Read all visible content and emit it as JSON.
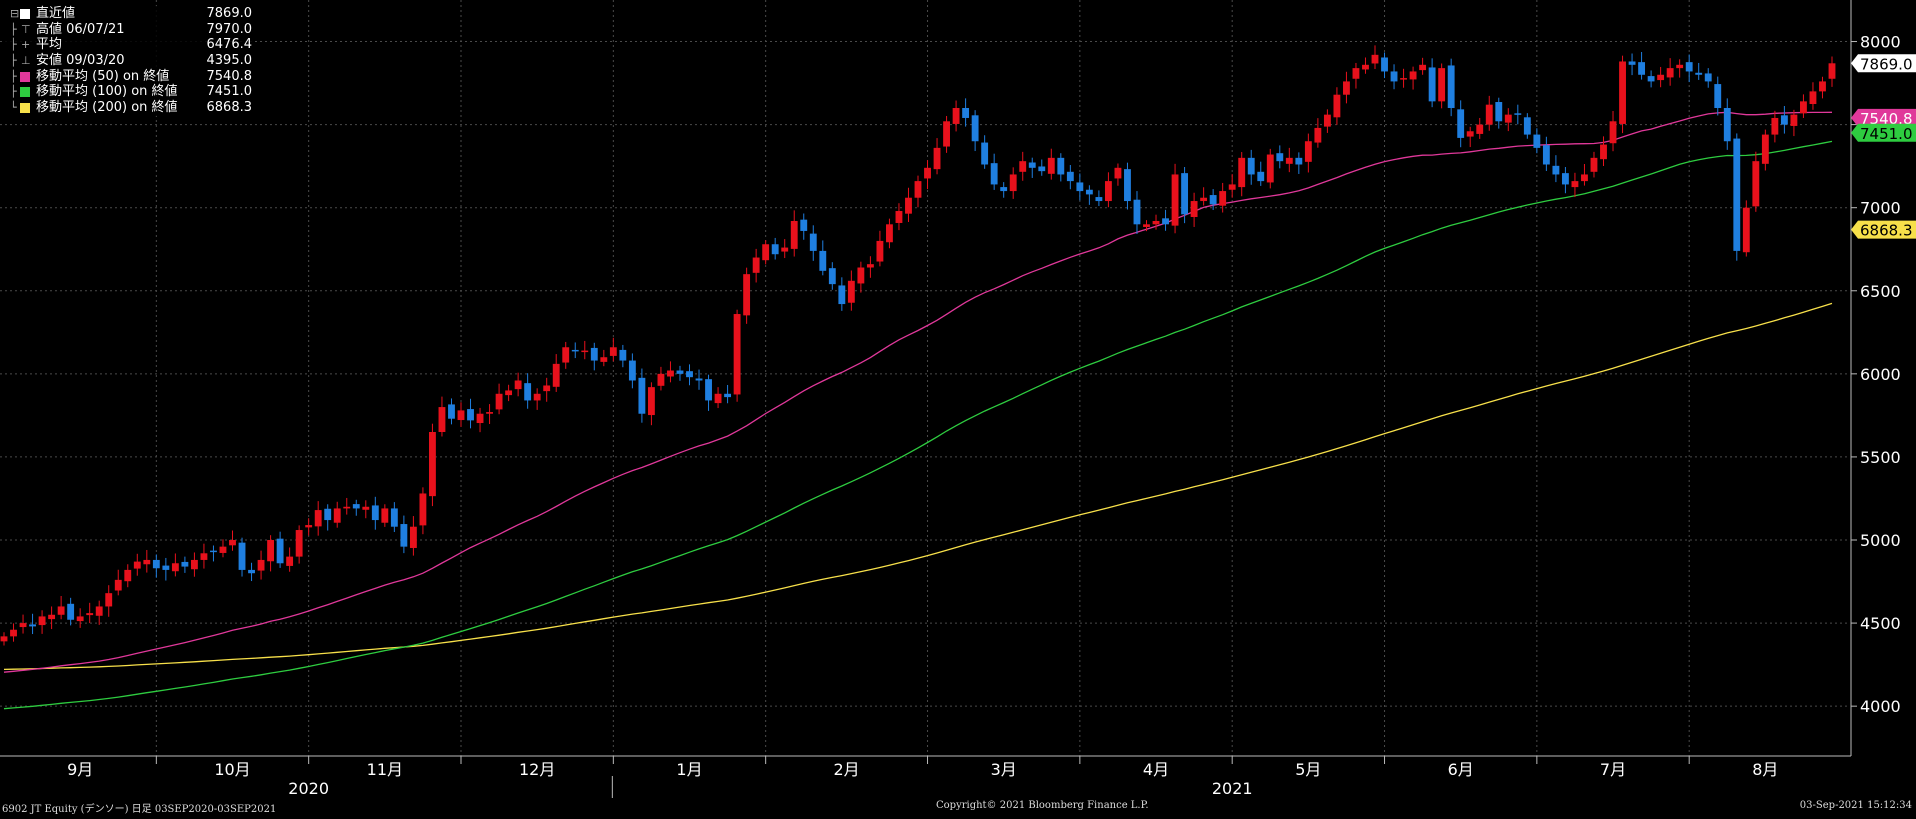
{
  "chart_data": {
    "type": "candlestick",
    "ticker_label": "6902 JT Equity (デンソー)  日足 03SEP2020-03SEP2021",
    "copyright": "Copyright© 2021 Bloomberg Finance L.P.",
    "timestamp": "03-Sep-2021 15:12:34",
    "ylim": [
      3700,
      8250
    ],
    "y_ticks": [
      4000,
      4500,
      5000,
      5500,
      6000,
      6500,
      7000,
      7500,
      8000
    ],
    "x_months": [
      "9月",
      "10月",
      "11月",
      "12月",
      "1月",
      "2月",
      "3月",
      "4月",
      "5月",
      "6月",
      "7月",
      "8月"
    ],
    "x_years": [
      "2020",
      "2021"
    ],
    "grid": true,
    "legend_position": "top-left",
    "legend": [
      {
        "label": "直近値",
        "value": "7869.0",
        "color": "#ffffff",
        "glyph": "box"
      },
      {
        "label": "高値 06/07/21",
        "value": "7970.0",
        "color": "#aaaaaa",
        "glyph": "high"
      },
      {
        "label": "平均",
        "value": "6476.4",
        "color": "#aaaaaa",
        "glyph": "avg"
      },
      {
        "label": "安値 09/03/20",
        "value": "4395.0",
        "color": "#aaaaaa",
        "glyph": "low"
      },
      {
        "label": "移動平均 (50)  on 終値",
        "value": "7540.8",
        "color": "#e0389a",
        "glyph": "box"
      },
      {
        "label": "移動平均 (100) on 終値",
        "value": "7451.0",
        "color": "#2ecc40",
        "glyph": "box"
      },
      {
        "label": "移動平均 (200) on 終値",
        "value": "6868.3",
        "color": "#f7e04a",
        "glyph": "box"
      }
    ],
    "last_labels": [
      {
        "text": "7869.0",
        "value": 7869.0,
        "bg": "#ffffff",
        "fg": "#000000"
      },
      {
        "text": "7540.8",
        "value": 7540.8,
        "bg": "#e0389a",
        "fg": "#ffffff"
      },
      {
        "text": "7451.0",
        "value": 7451.0,
        "bg": "#2ecc40",
        "fg": "#000000"
      },
      {
        "text": "6868.3",
        "value": 6868.3,
        "bg": "#f7e04a",
        "fg": "#000000"
      }
    ],
    "colors": {
      "up": "#e8111c",
      "down": "#1f7fe0",
      "ma50": "#e0389a",
      "ma100": "#2ecc40",
      "ma200": "#f7e04a",
      "grid": "#4a4a4a"
    },
    "series_close": [
      4420,
      4460,
      4500,
      4480,
      4540,
      4550,
      4600,
      4520,
      4540,
      4560,
      4600,
      4680,
      4760,
      4820,
      4870,
      4880,
      4830,
      4820,
      4860,
      4840,
      4880,
      4920,
      4930,
      4960,
      5000,
      4820,
      4800,
      4880,
      5000,
      4860,
      4900,
      5060,
      5090,
      5180,
      5120,
      5190,
      5200,
      5190,
      5200,
      5120,
      5190,
      5080,
      4960,
      5080,
      5280,
      5650,
      5800,
      5730,
      5780,
      5720,
      5760,
      5770,
      5880,
      5900,
      5960,
      5840,
      5880,
      5930,
      6060,
      6160,
      6140,
      6140,
      6080,
      6100,
      6160,
      6080,
      5960,
      5760,
      5920,
      6000,
      6020,
      6000,
      5980,
      5960,
      5840,
      5880,
      5860,
      6360,
      6600,
      6700,
      6780,
      6720,
      6760,
      6920,
      6860,
      6740,
      6620,
      6540,
      6420,
      6560,
      6640,
      6660,
      6800,
      6900,
      6980,
      7060,
      7160,
      7240,
      7360,
      7520,
      7600,
      7540,
      7400,
      7260,
      7140,
      7100,
      7200,
      7280,
      7240,
      7220,
      7300,
      7200,
      7160,
      7100,
      7080,
      7040,
      7160,
      7240,
      7040,
      6900,
      6900,
      6920,
      6900,
      7200,
      6960,
      7040,
      7060,
      7020,
      7100,
      7140,
      7300,
      7200,
      7160,
      7320,
      7280,
      7300,
      7260,
      7400,
      7480,
      7560,
      7680,
      7760,
      7840,
      7860,
      7920,
      7820,
      7760,
      7780,
      7820,
      7860,
      7640,
      7840,
      7600,
      7420,
      7460,
      7500,
      7620,
      7520,
      7560,
      7560,
      7440,
      7360,
      7260,
      7200,
      7140,
      7160,
      7200,
      7300,
      7380,
      7520,
      7880,
      7860,
      7800,
      7760,
      7800,
      7840,
      7860,
      7820,
      7800,
      7760,
      7600,
      7400,
      6740,
      7000,
      7280,
      7440,
      7540,
      7500,
      7560,
      7640,
      7700,
      7760,
      7869
    ]
  }
}
